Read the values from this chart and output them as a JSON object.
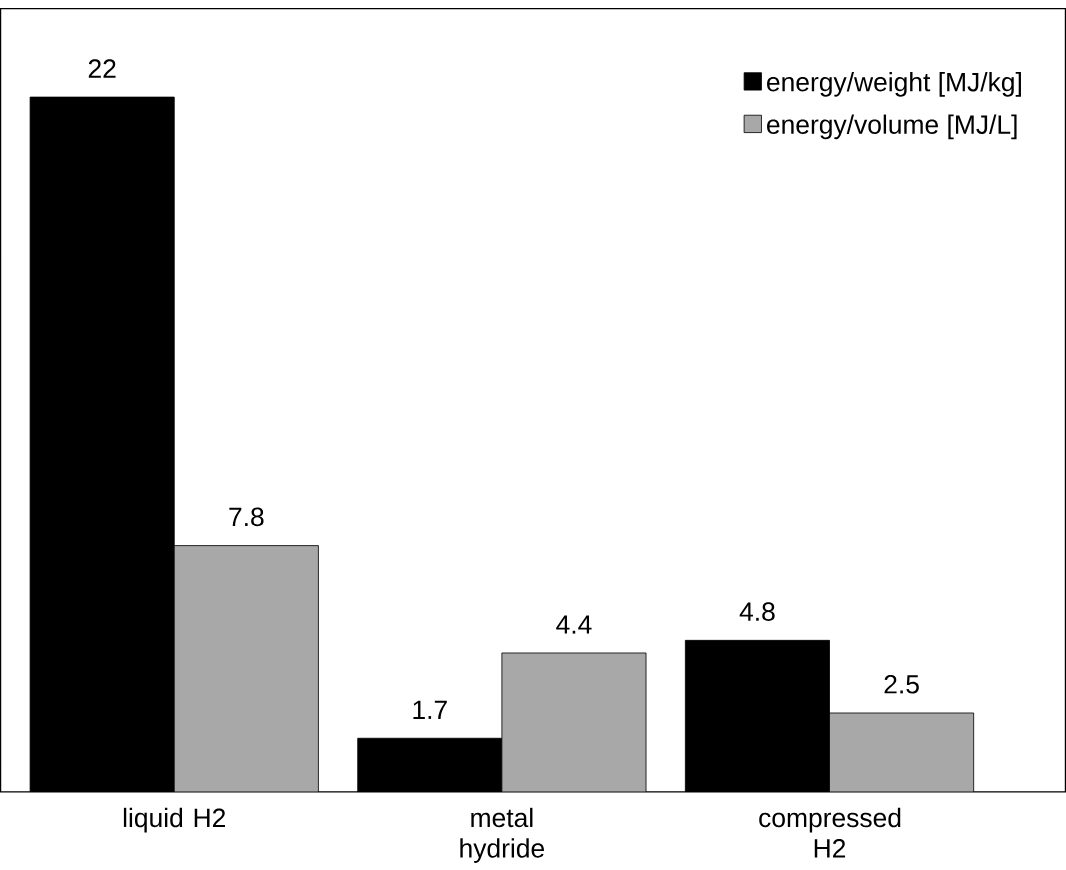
{
  "chart_data": {
    "type": "bar",
    "categories": [
      "liquid H2",
      "metal hydride",
      "compressed H2"
    ],
    "series": [
      {
        "name": "energy/weight [MJ/kg]",
        "color": "#000000",
        "values": [
          22,
          1.7,
          4.8
        ]
      },
      {
        "name": "energy/volume [MJ/L]",
        "color": "#a8a8a8",
        "values": [
          7.8,
          4.4,
          2.5
        ]
      }
    ],
    "ylim": [
      0,
      24.8
    ],
    "data_labels": true,
    "legend": "top right",
    "tick_labels": "x",
    "grid": false
  }
}
